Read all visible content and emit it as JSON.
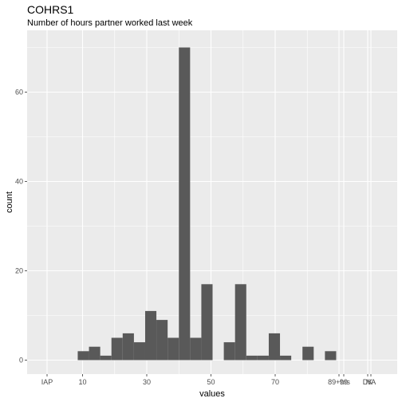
{
  "chart_data": {
    "type": "bar",
    "title": "COHRS1",
    "subtitle": "Number of hours partner worked last week",
    "xlabel": "values",
    "ylabel": "count",
    "ylim": [
      0,
      72
    ],
    "grid": true,
    "x_ticks": [
      "IAP",
      "10",
      "30",
      "50",
      "70",
      "89+hrs",
      "99",
      "DK",
      "NA"
    ],
    "y_ticks": [
      0,
      20,
      40,
      60
    ],
    "bins": [
      {
        "x0": 8.5,
        "x1": 12,
        "count": 2
      },
      {
        "x0": 12,
        "x1": 15.5,
        "count": 3
      },
      {
        "x0": 15.5,
        "x1": 19,
        "count": 1
      },
      {
        "x0": 19,
        "x1": 22.5,
        "count": 5
      },
      {
        "x0": 22.5,
        "x1": 26,
        "count": 6
      },
      {
        "x0": 26,
        "x1": 29.5,
        "count": 4
      },
      {
        "x0": 29.5,
        "x1": 33,
        "count": 11
      },
      {
        "x0": 33,
        "x1": 36.5,
        "count": 9
      },
      {
        "x0": 36.5,
        "x1": 40,
        "count": 5
      },
      {
        "x0": 40,
        "x1": 43.5,
        "count": 70
      },
      {
        "x0": 43.5,
        "x1": 47,
        "count": 5
      },
      {
        "x0": 47,
        "x1": 50.5,
        "count": 17
      },
      {
        "x0": 54,
        "x1": 57.5,
        "count": 4
      },
      {
        "x0": 57.5,
        "x1": 61,
        "count": 17
      },
      {
        "x0": 61,
        "x1": 64.5,
        "count": 1
      },
      {
        "x0": 64.5,
        "x1": 68,
        "count": 1
      },
      {
        "x0": 68,
        "x1": 71.5,
        "count": 6
      },
      {
        "x0": 71.5,
        "x1": 75,
        "count": 1
      },
      {
        "x0": 78.5,
        "x1": 82,
        "count": 3
      },
      {
        "x0": 85.5,
        "x1": 89,
        "count": 2
      }
    ],
    "bar_color": "#595959",
    "panel_color": "#ebebeb",
    "grid_color": "#ffffff"
  }
}
